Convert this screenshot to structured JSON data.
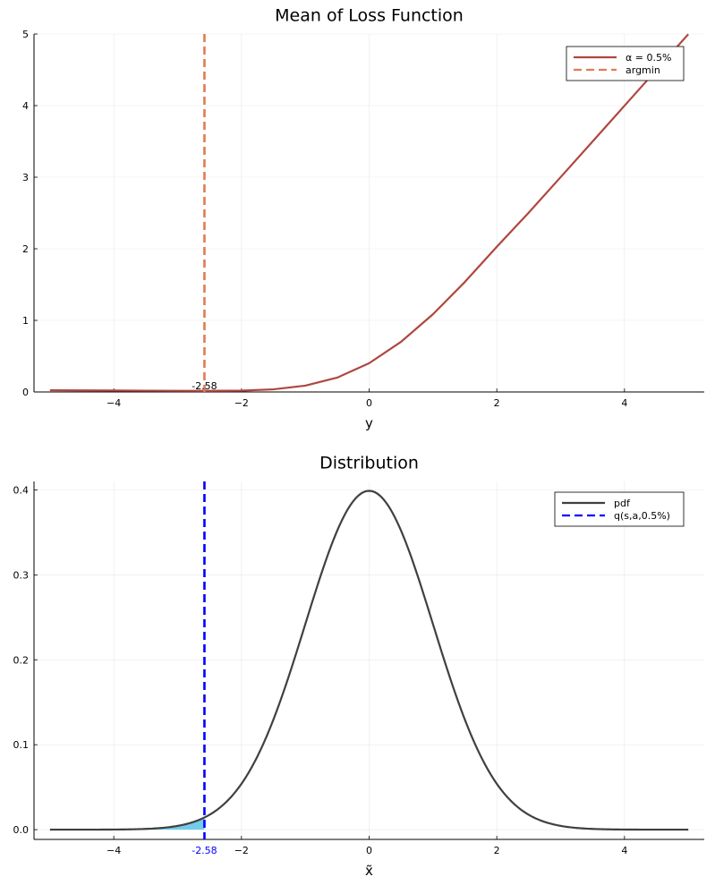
{
  "chart_data": [
    {
      "type": "line",
      "title": "Mean of Loss Function",
      "xlabel": "y",
      "ylabel": "",
      "xlim": [
        -5.25,
        5.25
      ],
      "ylim": [
        0,
        5
      ],
      "xticks": [
        -4,
        -2,
        0,
        2,
        4
      ],
      "xtick_labels": [
        "−4",
        "−2",
        "0",
        "2",
        "4"
      ],
      "yticks": [
        0,
        1,
        2,
        3,
        4,
        5
      ],
      "ytick_labels": [
        "0",
        "1",
        "2",
        "3",
        "4",
        "5"
      ],
      "grid": true,
      "legend": "top-right",
      "series": [
        {
          "name": "α = 0.5%",
          "color": "#b0463f",
          "style": "solid",
          "x": [
            -5,
            -4.5,
            -4,
            -3.5,
            -3,
            -2.58,
            -2.5,
            -2,
            -1.5,
            -1,
            -0.5,
            0,
            0.5,
            1,
            1.5,
            2,
            2.5,
            3,
            3.5,
            4,
            4.5,
            5
          ],
          "y": [
            0.0245,
            0.0222,
            0.0199,
            0.0178,
            0.0161,
            0.0154,
            0.0155,
            0.0184,
            0.0367,
            0.0883,
            0.2003,
            0.4014,
            0.7005,
            1.0858,
            1.5369,
            2.0284,
            2.5049,
            3.0006,
            3.4981,
            3.9975,
            4.4975,
            4.9975
          ]
        },
        {
          "name": "argmin",
          "color": "#e07b54",
          "style": "dashed",
          "vline": -2.58
        }
      ],
      "annotations": [
        {
          "text": "-2.58",
          "x": -2.58,
          "y": 0,
          "color": "#000000"
        }
      ]
    },
    {
      "type": "line",
      "title": "Distribution",
      "xlabel": "x̃",
      "ylabel": "",
      "xlim": [
        -5.25,
        5.25
      ],
      "ylim": [
        -0.0115,
        0.41
      ],
      "xticks": [
        -4,
        -2,
        0,
        2,
        4
      ],
      "xtick_labels": [
        "−4",
        "−2",
        "0",
        "2",
        "4"
      ],
      "yticks": [
        0,
        0.1,
        0.2,
        0.3,
        0.4
      ],
      "ytick_labels": [
        "0.0",
        "0.1",
        "0.2",
        "0.3",
        "0.4"
      ],
      "grid": true,
      "legend": "top-right",
      "series": [
        {
          "name": "pdf",
          "color": "#404040",
          "style": "solid",
          "function": "standard normal density",
          "x_range": [
            -5,
            5
          ]
        },
        {
          "name": "q(s,a,0.5%)",
          "color": "#0000ff",
          "style": "dashed",
          "vline": -2.58
        }
      ],
      "shaded_region": {
        "from": -5,
        "to": -2.58,
        "color": "#6bc9e8"
      },
      "annotations": [
        {
          "text": "-2.58",
          "x": -2.58,
          "y": 0,
          "color": "#0000ff"
        }
      ]
    }
  ]
}
